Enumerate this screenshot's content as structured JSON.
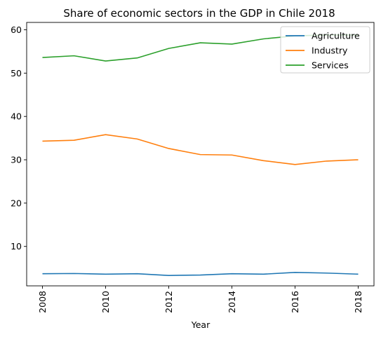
{
  "chart_data": {
    "type": "line",
    "title": "Share of economic sectors in the GDP in Chile 2018",
    "xlabel": "Year",
    "ylabel": "",
    "x": [
      2008,
      2009,
      2010,
      2011,
      2012,
      2013,
      2014,
      2015,
      2016,
      2017,
      2018
    ],
    "xticks": [
      "2008",
      "2010",
      "2012",
      "2014",
      "2016",
      "2018"
    ],
    "yticks": [
      "10",
      "20",
      "30",
      "40",
      "50",
      "60"
    ],
    "xlim": [
      2007.5,
      2018.5
    ],
    "ylim": [
      0.9,
      61.7
    ],
    "grid": false,
    "legend_position": "top-right",
    "series": [
      {
        "name": "Agriculture",
        "color": "#1f77b4",
        "values": [
          3.7,
          3.75,
          3.6,
          3.7,
          3.3,
          3.4,
          3.7,
          3.6,
          4.0,
          3.85,
          3.6
        ]
      },
      {
        "name": "Industry",
        "color": "#ff7f0e",
        "values": [
          34.3,
          34.5,
          35.8,
          34.8,
          32.6,
          31.2,
          31.1,
          29.8,
          28.9,
          29.7,
          30.0
        ]
      },
      {
        "name": "Services",
        "color": "#2ca02c",
        "values": [
          53.6,
          54.0,
          52.8,
          53.5,
          55.7,
          57.0,
          56.7,
          57.9,
          58.6,
          58.8,
          58.8
        ]
      }
    ]
  }
}
